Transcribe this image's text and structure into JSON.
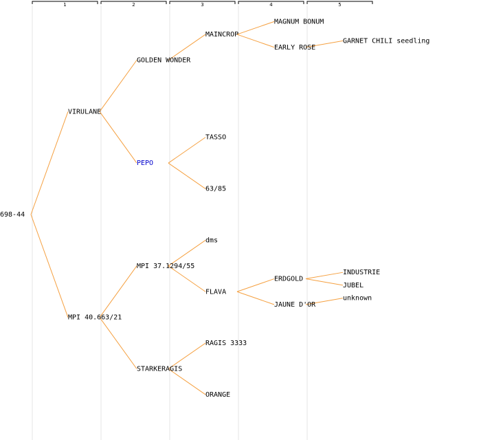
{
  "colors": {
    "edge": "#f5a040",
    "column_line": "#e4e4e4",
    "header_bracket": "#000000",
    "text": "#000000",
    "highlight": "#0000cc"
  },
  "generations": [
    "1",
    "2",
    "3",
    "4",
    "5"
  ],
  "root": {
    "name": "698-44",
    "children": [
      {
        "name": "VIRULANE",
        "children": [
          {
            "name": "GOLDEN WONDER",
            "children": [
              {
                "name": "MAINCROP",
                "children": [
                  {
                    "name": "MAGNUM BONUM",
                    "children": []
                  },
                  {
                    "name": "EARLY ROSE",
                    "children": [
                      {
                        "name": "GARNET CHILI seedling",
                        "children": []
                      }
                    ]
                  }
                ]
              }
            ]
          },
          {
            "name": "PEPO",
            "highlight": true,
            "children": [
              {
                "name": "TASSO",
                "children": []
              },
              {
                "name": "63/85",
                "children": []
              }
            ]
          }
        ]
      },
      {
        "name": "MPI 40.663/21",
        "children": [
          {
            "name": "MPI 37.1294/55",
            "children": [
              {
                "name": "dms",
                "children": []
              },
              {
                "name": "FLAVA",
                "children": [
                  {
                    "name": "ERDGOLD",
                    "children": [
                      {
                        "name": "INDUSTRIE",
                        "children": []
                      },
                      {
                        "name": "JUBEL",
                        "children": []
                      }
                    ]
                  },
                  {
                    "name": "JAUNE D'OR",
                    "children": [
                      {
                        "name": "unknown",
                        "children": []
                      }
                    ]
                  }
                ]
              }
            ]
          },
          {
            "name": "STARKERAGIS",
            "children": [
              {
                "name": "RAGIS 3333",
                "children": []
              },
              {
                "name": "ORANGE",
                "children": []
              }
            ]
          }
        ]
      }
    ]
  }
}
